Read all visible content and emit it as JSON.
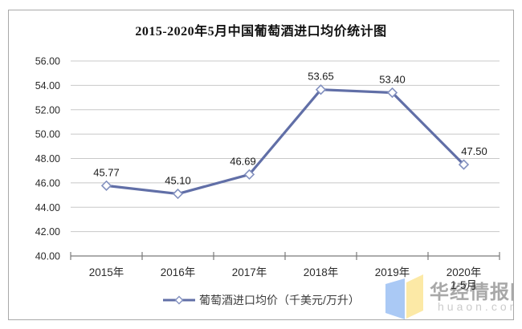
{
  "title": "2015-2020年5月中国葡萄酒进口均价统计图",
  "chart_data": {
    "type": "line",
    "title": "2015-2020年5月中国葡萄酒进口均价统计图",
    "categories": [
      "2015年",
      "2016年",
      "2017年",
      "2018年",
      "2019年",
      "2020年\n1-5月"
    ],
    "series": [
      {
        "name": "葡萄酒进口均价（千美元/万升）",
        "values": [
          45.77,
          45.1,
          46.69,
          53.65,
          53.4,
          47.5
        ]
      }
    ],
    "data_labels": [
      "45.77",
      "45.10",
      "46.69",
      "53.65",
      "53.40",
      "47.50"
    ],
    "ylim": [
      40,
      56
    ],
    "ytick_step": 2,
    "ytick_labels": [
      "40.00",
      "42.00",
      "44.00",
      "46.00",
      "48.00",
      "50.00",
      "52.00",
      "54.00",
      "56.00"
    ],
    "grid": true,
    "legend": "葡萄酒进口均价（千美元/万升）",
    "legend_position": "bottom",
    "line_color": "#616fa7",
    "marker": "diamond",
    "marker_fill": "#ffffff",
    "marker_stroke": "#8290bf",
    "label_dx": [
      0,
      0,
      -8,
      0,
      0,
      13
    ]
  },
  "watermark": {
    "site_name": "华经情报网",
    "domain": "huaon.com",
    "logo_blue": "#aac9f5",
    "logo_yellow": "#fce9a6"
  }
}
